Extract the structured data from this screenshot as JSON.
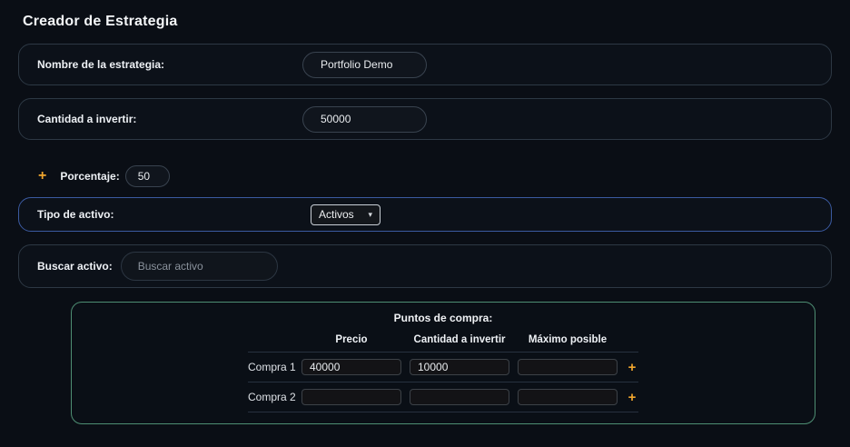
{
  "page": {
    "title": "Creador de Estrategia"
  },
  "colors": {
    "accent_orange": "#f0a62e",
    "blue_border": "#3b5aa0",
    "green_border": "#4e8e73"
  },
  "fields": {
    "name": {
      "label": "Nombre de la estrategia:",
      "value": "Portfolio Demo"
    },
    "amount": {
      "label": "Cantidad a invertir:",
      "value": "50000"
    },
    "percentage": {
      "label": "Porcentaje:",
      "value": "50",
      "add_icon": "+"
    },
    "asset_type": {
      "label": "Tipo de activo:",
      "selected": "Activos",
      "chevron": "▾"
    },
    "search": {
      "label": "Buscar activo:",
      "placeholder": "Buscar activo",
      "value": ""
    }
  },
  "buy_points": {
    "title": "Puntos de compra:",
    "columns": [
      "Precio",
      "Cantidad a invertir",
      "Máximo posible"
    ],
    "add_icon": "+",
    "rows": [
      {
        "label": "Compra 1",
        "precio": "40000",
        "cantidad": "10000",
        "maximo": ""
      },
      {
        "label": "Compra 2",
        "precio": "",
        "cantidad": "",
        "maximo": ""
      }
    ]
  }
}
